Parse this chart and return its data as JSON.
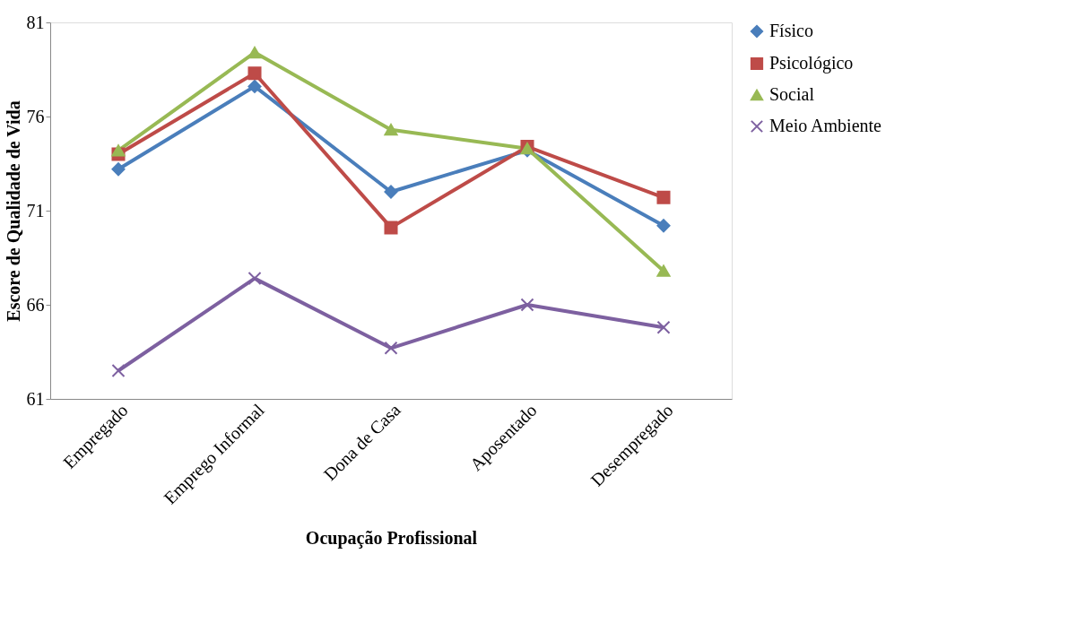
{
  "chart_data": {
    "type": "line",
    "xlabel": "Ocupação Profissional",
    "ylabel": "Escore de Qualidade de Vida",
    "categories": [
      "Empregado",
      "Emprego Informal",
      "Dona de Casa",
      "Aposentado",
      "Desempregado"
    ],
    "series": [
      {
        "name": "Físico",
        "color": "#4a7ebb",
        "marker": "diamond",
        "values": [
          73.2,
          77.6,
          72.0,
          74.2,
          70.2
        ]
      },
      {
        "name": "Psicológico",
        "color": "#be4b48",
        "marker": "square",
        "values": [
          74.0,
          78.3,
          70.1,
          74.4,
          71.7
        ]
      },
      {
        "name": "Social",
        "color": "#98b954",
        "marker": "triangle",
        "values": [
          74.2,
          79.4,
          75.3,
          74.3,
          67.8
        ]
      },
      {
        "name": "Meio Ambiente",
        "color": "#7d60a0",
        "marker": "cross",
        "values": [
          62.5,
          67.4,
          63.7,
          66.0,
          64.8
        ]
      }
    ],
    "ylim": [
      61,
      81
    ],
    "yticks": [
      61,
      66,
      71,
      76,
      81
    ],
    "grid": false,
    "legend": "right",
    "line_style": "solid"
  }
}
